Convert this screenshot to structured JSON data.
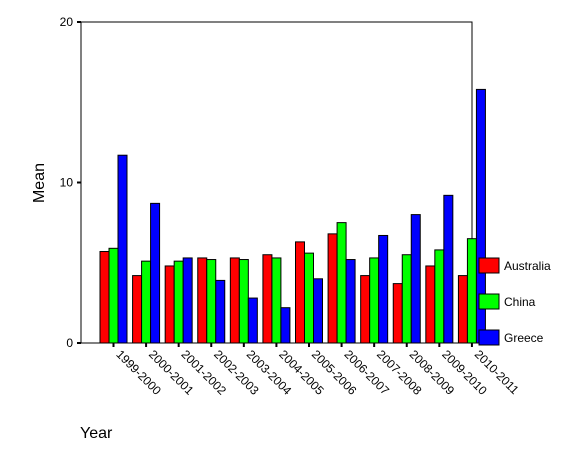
{
  "chart_data": {
    "type": "bar",
    "title": "",
    "xlabel": "Year",
    "ylabel": "Mean",
    "ylim": [
      0,
      20
    ],
    "yticks": [
      "0",
      "10",
      "20"
    ],
    "categories": [
      "1999-2000",
      "2000-2001",
      "2001-2002",
      "2002-2003",
      "2003-2004",
      "2004-2005",
      "2005-2006",
      "2006-2007",
      "2007-2008",
      "2008-2009",
      "2009-2010",
      "2010-2011"
    ],
    "series": [
      {
        "name": "Australia",
        "color": "#ff0000",
        "values": [
          5.7,
          4.2,
          4.8,
          5.3,
          5.3,
          5.5,
          6.3,
          6.8,
          4.2,
          3.7,
          4.8,
          4.2
        ]
      },
      {
        "name": "China",
        "color": "#00ff00",
        "values": [
          5.9,
          5.1,
          5.1,
          5.2,
          5.2,
          5.3,
          5.6,
          7.5,
          5.3,
          5.5,
          5.8,
          6.5
        ]
      },
      {
        "name": "Greece",
        "color": "#0000ff",
        "values": [
          11.7,
          8.7,
          5.3,
          3.9,
          2.8,
          2.2,
          4.0,
          5.2,
          6.7,
          8.0,
          9.2,
          15.8
        ]
      }
    ],
    "grid": false,
    "legend": "right"
  }
}
